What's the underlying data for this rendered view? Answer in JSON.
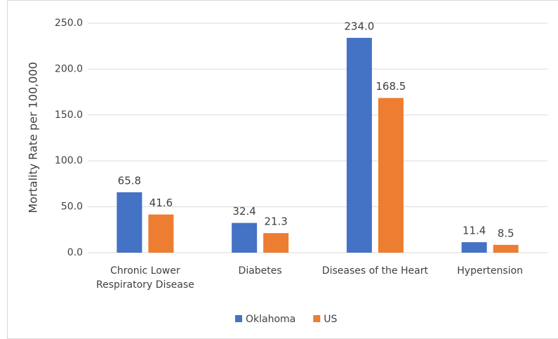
{
  "chart_data": {
    "type": "bar",
    "y_label": "Mortality Rate per 100,000",
    "categories": [
      "Chronic Lower Respiratory Disease",
      "Diabetes",
      "Diseases of the Heart",
      "Hypertension"
    ],
    "series": [
      {
        "name": "Oklahoma",
        "color": "#4472c4",
        "values": [
          65.8,
          32.4,
          234.0,
          11.4
        ],
        "value_labels": [
          "65.8",
          "32.4",
          "234.0",
          "11.4"
        ]
      },
      {
        "name": "US",
        "color": "#ed7d31",
        "values": [
          41.6,
          21.3,
          168.5,
          8.5
        ],
        "value_labels": [
          "41.6",
          "21.3",
          "168.5",
          "8.5"
        ]
      }
    ],
    "ylim": [
      0,
      250
    ],
    "yticks": [
      {
        "value": 0,
        "label": "0.0"
      },
      {
        "value": 50,
        "label": "50.0"
      },
      {
        "value": 100,
        "label": "100.0"
      },
      {
        "value": 150,
        "label": "150.0"
      },
      {
        "value": 200,
        "label": "200.0"
      },
      {
        "value": 250,
        "label": "250.0"
      }
    ],
    "grid": true,
    "legend": "bottom"
  }
}
